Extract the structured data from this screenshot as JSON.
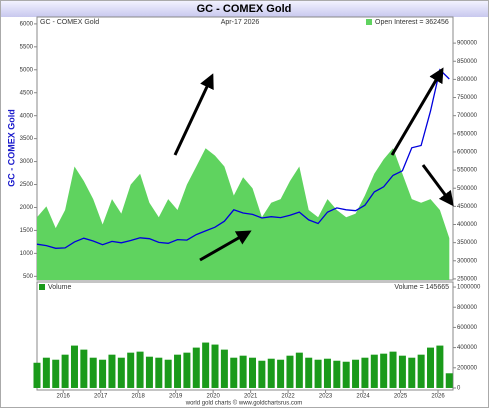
{
  "chart_data": [
    {
      "type": "line",
      "title": "GC - COMEX Gold",
      "date": "Apr-17 2026",
      "ylabel": "GC - COMEX Gold",
      "x": [
        2015.3,
        2015.55,
        2015.8,
        2016.05,
        2016.3,
        2016.55,
        2016.8,
        2017.05,
        2017.3,
        2017.55,
        2017.8,
        2018.05,
        2018.3,
        2018.55,
        2018.8,
        2019.05,
        2019.3,
        2019.55,
        2019.8,
        2020.05,
        2020.3,
        2020.55,
        2020.8,
        2021.05,
        2021.3,
        2021.55,
        2021.8,
        2022.05,
        2022.3,
        2022.55,
        2022.8,
        2023.05,
        2023.3,
        2023.55,
        2023.8,
        2024.05,
        2024.3,
        2024.55,
        2024.8,
        2025.05,
        2025.3,
        2025.55,
        2025.8,
        2026.05,
        2026.3
      ],
      "series": [
        {
          "name": "GC - COMEX Gold",
          "color": "#0000dd",
          "axis": "y",
          "type": "line",
          "values": [
            1200,
            1170,
            1110,
            1120,
            1250,
            1330,
            1270,
            1190,
            1260,
            1230,
            1280,
            1340,
            1320,
            1240,
            1220,
            1300,
            1290,
            1410,
            1490,
            1570,
            1700,
            1950,
            1880,
            1850,
            1770,
            1800,
            1780,
            1830,
            1900,
            1730,
            1650,
            1900,
            1990,
            1950,
            1930,
            2050,
            2340,
            2450,
            2700,
            2800,
            3300,
            3350,
            4100,
            5000,
            4800
          ]
        },
        {
          "name": "Open Interest = 362456",
          "color": "#5fd35f",
          "axis": "y2",
          "type": "area",
          "values": [
            420000,
            450000,
            390000,
            440000,
            560000,
            520000,
            470000,
            400000,
            470000,
            430000,
            510000,
            540000,
            460000,
            420000,
            470000,
            440000,
            510000,
            560000,
            610000,
            590000,
            560000,
            480000,
            530000,
            500000,
            420000,
            460000,
            470000,
            520000,
            560000,
            440000,
            420000,
            470000,
            440000,
            420000,
            430000,
            480000,
            540000,
            580000,
            610000,
            540000,
            470000,
            460000,
            470000,
            440000,
            362456
          ]
        }
      ],
      "xlim": [
        2015.3,
        2026.4
      ],
      "ylim": [
        420,
        6150
      ],
      "yticks": [
        500,
        1000,
        1500,
        2000,
        2500,
        3000,
        3500,
        4000,
        4500,
        5000,
        5500,
        6000
      ],
      "y2lim": [
        247000,
        972000
      ],
      "y2ticks": [
        250000,
        300000,
        350000,
        400000,
        450000,
        500000,
        550000,
        600000,
        650000,
        700000,
        750000,
        800000,
        850000,
        900000
      ]
    },
    {
      "type": "bar",
      "name": "Volume",
      "label": "Volume = 145665",
      "color": "#1a9a1a",
      "values": [
        250000,
        300000,
        280000,
        330000,
        420000,
        380000,
        300000,
        280000,
        330000,
        300000,
        350000,
        360000,
        310000,
        300000,
        280000,
        330000,
        350000,
        400000,
        450000,
        430000,
        380000,
        300000,
        320000,
        300000,
        270000,
        290000,
        280000,
        320000,
        350000,
        300000,
        280000,
        290000,
        270000,
        260000,
        280000,
        300000,
        330000,
        340000,
        360000,
        320000,
        300000,
        330000,
        400000,
        420000,
        145665
      ],
      "ylim": [
        -20000,
        1050000
      ],
      "y2ticks": [
        0,
        200000,
        400000,
        600000,
        800000,
        1000000
      ],
      "xticks": [
        2016,
        2017,
        2018,
        2019,
        2020,
        2021,
        2022,
        2023,
        2024,
        2025,
        2026
      ],
      "source": "world gold charts © www.goldchartsrus.com"
    }
  ]
}
